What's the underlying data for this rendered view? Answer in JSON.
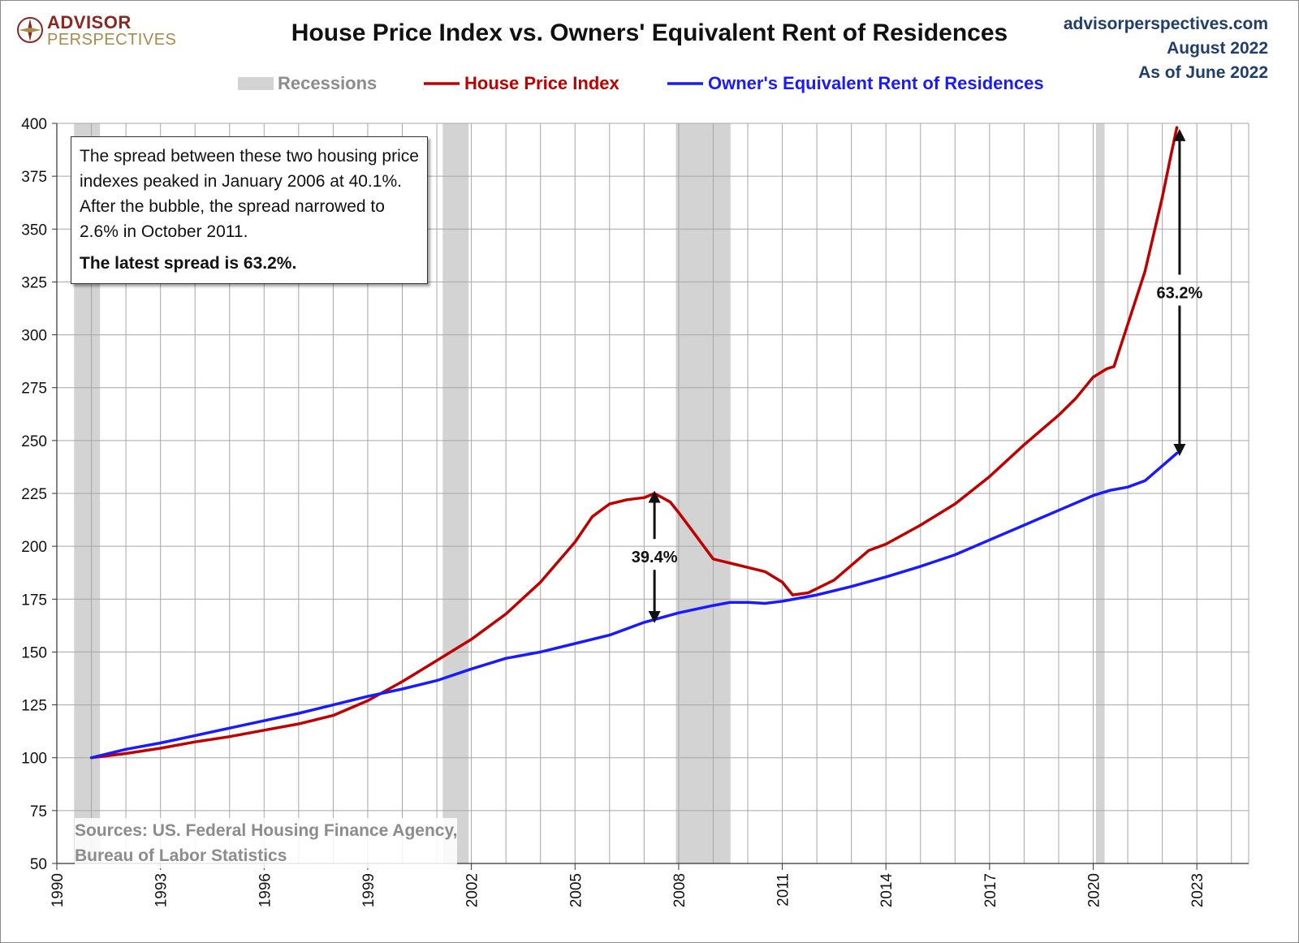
{
  "header": {
    "logo_line1": "ADVISOR",
    "logo_line2": "PERSPECTIVES",
    "title": "House Price Index vs. Owners' Equivalent Rent of Residences",
    "site": "advisorperspectives.com",
    "date": "August 2022",
    "as_of": "As of June 2022"
  },
  "legend": {
    "recessions": "Recessions",
    "hpi": "House Price Index",
    "oer": "Owner's Equivalent Rent of Residences"
  },
  "note": {
    "text": "The spread between these two housing price indexes peaked in January 2006 at 40.1%. After the bubble, the spread narrowed to 2.6% in October 2011.",
    "bold": "The latest spread is 63.2%."
  },
  "sources": {
    "line1": "Sources: US. Federal Housing Finance Agency,",
    "line2": "Bureau of Labor Statistics"
  },
  "colors": {
    "hpi": "#c00000",
    "oer": "#1a1aff",
    "recession": "#d3d3d3",
    "grid": "#a6a6a6"
  },
  "chart_data": {
    "type": "line",
    "xlim": [
      1990,
      2024.5
    ],
    "ylim": [
      50,
      400
    ],
    "x_ticks": [
      1990,
      1993,
      1996,
      1999,
      2002,
      2005,
      2008,
      2011,
      2014,
      2017,
      2020,
      2023
    ],
    "y_ticks": [
      50,
      75,
      100,
      125,
      150,
      175,
      200,
      225,
      250,
      275,
      300,
      325,
      350,
      375,
      400
    ],
    "grid": true,
    "legend_position": "top",
    "recessions": [
      [
        1990.5,
        1991.25
      ],
      [
        2001.17,
        2001.92
      ],
      [
        2007.92,
        2009.5
      ],
      [
        2020.08,
        2020.33
      ]
    ],
    "series": [
      {
        "name": "House Price Index",
        "color": "#c00000",
        "points": [
          [
            1991.0,
            100
          ],
          [
            1992.0,
            102
          ],
          [
            1993.0,
            104.5
          ],
          [
            1994.0,
            107.5
          ],
          [
            1995.0,
            110
          ],
          [
            1996.0,
            113
          ],
          [
            1997.0,
            116
          ],
          [
            1998.0,
            120
          ],
          [
            1999.0,
            127
          ],
          [
            2000.0,
            136
          ],
          [
            2001.0,
            146
          ],
          [
            2002.0,
            156
          ],
          [
            2003.0,
            168
          ],
          [
            2004.0,
            183
          ],
          [
            2005.0,
            202
          ],
          [
            2005.5,
            214
          ],
          [
            2006.0,
            220
          ],
          [
            2006.5,
            222
          ],
          [
            2007.0,
            223
          ],
          [
            2007.3,
            225
          ],
          [
            2007.75,
            221
          ],
          [
            2008.0,
            216
          ],
          [
            2008.5,
            205
          ],
          [
            2009.0,
            194
          ],
          [
            2009.5,
            192
          ],
          [
            2010.0,
            190
          ],
          [
            2010.5,
            188
          ],
          [
            2011.0,
            183
          ],
          [
            2011.3,
            177
          ],
          [
            2011.75,
            178
          ],
          [
            2012.0,
            180
          ],
          [
            2012.5,
            184
          ],
          [
            2013.0,
            191
          ],
          [
            2013.5,
            198
          ],
          [
            2014.0,
            201
          ],
          [
            2015.0,
            210
          ],
          [
            2016.0,
            220
          ],
          [
            2017.0,
            233
          ],
          [
            2018.0,
            248
          ],
          [
            2019.0,
            262
          ],
          [
            2019.5,
            270
          ],
          [
            2020.0,
            280
          ],
          [
            2020.4,
            284
          ],
          [
            2020.6,
            285
          ],
          [
            2021.0,
            305
          ],
          [
            2021.5,
            330
          ],
          [
            2022.0,
            365
          ],
          [
            2022.25,
            385
          ],
          [
            2022.42,
            398
          ]
        ]
      },
      {
        "name": "Owner's Equivalent Rent of Residences",
        "color": "#1a1aff",
        "points": [
          [
            1991.0,
            100
          ],
          [
            1992.0,
            104
          ],
          [
            1993.0,
            107
          ],
          [
            1994.0,
            110.5
          ],
          [
            1995.0,
            114
          ],
          [
            1996.0,
            117.5
          ],
          [
            1997.0,
            121
          ],
          [
            1998.0,
            125
          ],
          [
            1999.0,
            129
          ],
          [
            2000.0,
            132.5
          ],
          [
            2001.0,
            136.5
          ],
          [
            2002.0,
            142
          ],
          [
            2003.0,
            147
          ],
          [
            2004.0,
            150
          ],
          [
            2005.0,
            154
          ],
          [
            2006.0,
            158
          ],
          [
            2007.0,
            164
          ],
          [
            2008.0,
            168.5
          ],
          [
            2009.0,
            172
          ],
          [
            2009.5,
            173.5
          ],
          [
            2010.0,
            173.5
          ],
          [
            2010.5,
            173
          ],
          [
            2011.0,
            174
          ],
          [
            2012.0,
            177
          ],
          [
            2013.0,
            181
          ],
          [
            2014.0,
            185.5
          ],
          [
            2015.0,
            190.5
          ],
          [
            2016.0,
            196
          ],
          [
            2017.0,
            203
          ],
          [
            2018.0,
            210
          ],
          [
            2019.0,
            217
          ],
          [
            2020.0,
            224
          ],
          [
            2020.5,
            226.5
          ],
          [
            2021.0,
            228
          ],
          [
            2021.5,
            231
          ],
          [
            2022.0,
            238
          ],
          [
            2022.42,
            244
          ]
        ]
      }
    ],
    "annotations": [
      {
        "label": "39.4%",
        "x": 2007.3,
        "y_from": 165,
        "y_to": 225
      },
      {
        "label": "63.2%",
        "x": 2022.5,
        "y_from": 244,
        "y_to": 396
      }
    ]
  }
}
